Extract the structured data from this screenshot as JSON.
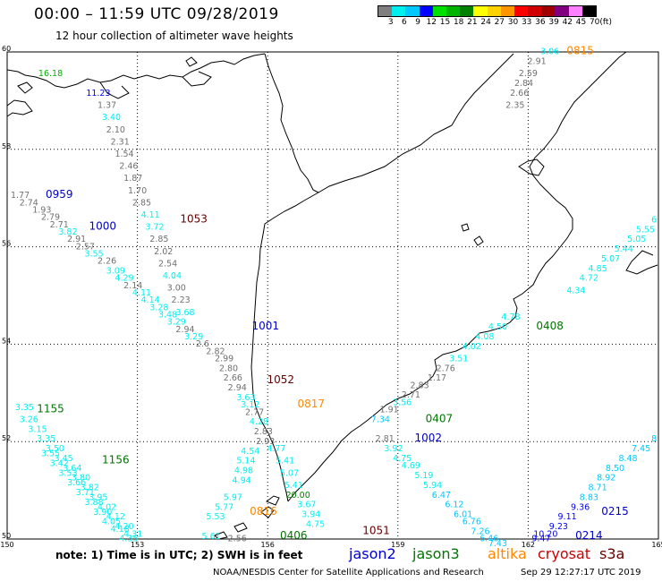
{
  "header": {
    "title": "00:00 – 11:59 UTC 09/28/2019",
    "subtitle": "12 hour collection of altimeter wave heights"
  },
  "scale": {
    "unit": "(ft)",
    "labels": [
      "3",
      "6",
      "9",
      "12",
      "15",
      "18",
      "21",
      "24",
      "27",
      "30",
      "33",
      "36",
      "39",
      "42",
      "45",
      "70"
    ],
    "colors": [
      "#7f7f7f",
      "#00f0f0",
      "#00c8ff",
      "#0000ff",
      "#00e000",
      "#00b400",
      "#008200",
      "#ffff00",
      "#ffd200",
      "#ff9600",
      "#ff0000",
      "#d00000",
      "#a00000",
      "#800080",
      "#ff80ff",
      "#000000"
    ]
  },
  "map": {
    "lat_labels": [
      "60",
      "58",
      "56",
      "54",
      "52",
      "50"
    ],
    "lon_labels": [
      "150",
      "153",
      "156",
      "159",
      "162",
      "165"
    ],
    "latitudes": [
      60,
      58,
      56,
      54,
      52,
      50
    ],
    "longitudes": [
      150,
      153,
      156,
      159,
      162,
      165
    ]
  },
  "chart_data": {
    "type": "scatter",
    "x_range": [
      150,
      165
    ],
    "y_range": [
      50,
      60
    ],
    "satellites": [
      {
        "name": "jason2",
        "color": "#0000cc"
      },
      {
        "name": "jason3",
        "color": "#007700"
      },
      {
        "name": "altika",
        "color": "#ff8800"
      },
      {
        "name": "cryosat",
        "color": "#cc0000"
      },
      {
        "name": "s3a",
        "color": "#660000"
      }
    ],
    "pass_labels": [
      {
        "text": "0815",
        "sat": "altika",
        "lon": 163.2,
        "lat": 59.95
      },
      {
        "text": "0959",
        "sat": "jason2",
        "lon": 151.2,
        "lat": 57.0
      },
      {
        "text": "1000",
        "sat": "jason2",
        "lon": 152.2,
        "lat": 56.35
      },
      {
        "text": "1053",
        "sat": "s3a",
        "lon": 154.3,
        "lat": 56.5
      },
      {
        "text": "1001",
        "sat": "jason2",
        "lon": 155.95,
        "lat": 54.3
      },
      {
        "text": "1052",
        "sat": "s3a",
        "lon": 156.3,
        "lat": 53.2
      },
      {
        "text": "0817",
        "sat": "altika",
        "lon": 157.0,
        "lat": 52.7
      },
      {
        "text": "0408",
        "sat": "jason3",
        "lon": 162.5,
        "lat": 54.3
      },
      {
        "text": "0407",
        "sat": "jason3",
        "lon": 159.95,
        "lat": 52.4
      },
      {
        "text": "1002",
        "sat": "jason2",
        "lon": 159.7,
        "lat": 52.0
      },
      {
        "text": "1155",
        "sat": "jason3",
        "lon": 151.0,
        "lat": 52.6
      },
      {
        "text": "1156",
        "sat": "jason3",
        "lon": 152.5,
        "lat": 51.55
      },
      {
        "text": "0816",
        "sat": "altika",
        "lon": 155.9,
        "lat": 50.5
      },
      {
        "text": "0406",
        "sat": "jason3",
        "lon": 156.6,
        "lat": 50.0
      },
      {
        "text": "1051",
        "sat": "s3a",
        "lon": 158.5,
        "lat": 50.1
      },
      {
        "text": "0215",
        "sat": "jason2",
        "lon": 164.0,
        "lat": 50.5
      },
      {
        "text": "0214",
        "sat": "jason2",
        "lon": 163.4,
        "lat": 50.0
      }
    ],
    "tracks": [
      {
        "name": "altika-0815",
        "values": [
          {
            "lon": 162.5,
            "lat": 59.95,
            "v": "3.06"
          },
          {
            "lon": 162.2,
            "lat": 59.75,
            "v": "2.91"
          },
          {
            "lon": 162.0,
            "lat": 59.5,
            "v": "2.59"
          },
          {
            "lon": 161.9,
            "lat": 59.3,
            "v": "2.84"
          },
          {
            "lon": 161.8,
            "lat": 59.1,
            "v": "2.66"
          },
          {
            "lon": 161.7,
            "lat": 58.85,
            "v": "2.35"
          }
        ]
      },
      {
        "name": "jason3-west",
        "values": [
          {
            "lon": 151.0,
            "lat": 59.5,
            "v": "16.18"
          }
        ]
      },
      {
        "name": "jason2-0959",
        "values": [
          {
            "lon": 152.1,
            "lat": 59.1,
            "v": "11.23"
          },
          {
            "lon": 152.3,
            "lat": 58.85,
            "v": "1.37"
          },
          {
            "lon": 152.4,
            "lat": 58.6,
            "v": "3.40"
          },
          {
            "lon": 152.5,
            "lat": 58.35,
            "v": "2.10"
          },
          {
            "lon": 152.6,
            "lat": 58.1,
            "v": "2.31"
          },
          {
            "lon": 152.7,
            "lat": 57.85,
            "v": "1.54"
          },
          {
            "lon": 152.8,
            "lat": 57.6,
            "v": "2.46"
          },
          {
            "lon": 152.9,
            "lat": 57.35,
            "v": "1.87"
          },
          {
            "lon": 153.0,
            "lat": 57.1,
            "v": "1.70"
          },
          {
            "lon": 153.1,
            "lat": 56.85,
            "v": "2.85"
          },
          {
            "lon": 153.3,
            "lat": 56.6,
            "v": "4.11"
          },
          {
            "lon": 153.4,
            "lat": 56.35,
            "v": "3.72"
          },
          {
            "lon": 153.5,
            "lat": 56.1,
            "v": "2.85"
          },
          {
            "lon": 153.6,
            "lat": 55.85,
            "v": "2.02"
          },
          {
            "lon": 153.7,
            "lat": 55.6,
            "v": "2.54"
          },
          {
            "lon": 153.8,
            "lat": 55.35,
            "v": "4.04"
          },
          {
            "lon": 153.9,
            "lat": 55.1,
            "v": "3.00"
          },
          {
            "lon": 154.0,
            "lat": 54.85,
            "v": "2.23"
          },
          {
            "lon": 154.1,
            "lat": 54.6,
            "v": "3.68"
          }
        ]
      },
      {
        "name": "jason2-1000",
        "values": [
          {
            "lon": 150.3,
            "lat": 57.0,
            "v": "1.77"
          },
          {
            "lon": 150.5,
            "lat": 56.85,
            "v": "2.74"
          },
          {
            "lon": 150.8,
            "lat": 56.7,
            "v": "1.93"
          },
          {
            "lon": 151.0,
            "lat": 56.55,
            "v": "2.79"
          },
          {
            "lon": 151.2,
            "lat": 56.4,
            "v": "2.71"
          },
          {
            "lon": 151.4,
            "lat": 56.25,
            "v": "3.82"
          },
          {
            "lon": 151.6,
            "lat": 56.1,
            "v": "2.91"
          },
          {
            "lon": 151.8,
            "lat": 55.95,
            "v": "2.57"
          },
          {
            "lon": 152.0,
            "lat": 55.8,
            "v": "3.55"
          },
          {
            "lon": 152.3,
            "lat": 55.65,
            "v": "2.26"
          },
          {
            "lon": 152.5,
            "lat": 55.45,
            "v": "3.09"
          },
          {
            "lon": 152.7,
            "lat": 55.3,
            "v": "4.29"
          },
          {
            "lon": 152.9,
            "lat": 55.15,
            "v": "2.14"
          },
          {
            "lon": 153.1,
            "lat": 55.0,
            "v": "4.11"
          },
          {
            "lon": 153.3,
            "lat": 54.85,
            "v": "4.14"
          },
          {
            "lon": 153.5,
            "lat": 54.7,
            "v": "3.28"
          },
          {
            "lon": 153.7,
            "lat": 54.55,
            "v": "3.48"
          },
          {
            "lon": 153.9,
            "lat": 54.4,
            "v": "3.29"
          },
          {
            "lon": 154.1,
            "lat": 54.25,
            "v": "2.94"
          },
          {
            "lon": 154.3,
            "lat": 54.1,
            "v": "3.29"
          },
          {
            "lon": 154.5,
            "lat": 53.95,
            "v": "2.6"
          },
          {
            "lon": 154.8,
            "lat": 53.8,
            "v": "2.82"
          },
          {
            "lon": 155.0,
            "lat": 53.65,
            "v": "2.99"
          },
          {
            "lon": 155.1,
            "lat": 53.45,
            "v": "2.80"
          },
          {
            "lon": 155.2,
            "lat": 53.25,
            "v": "2.66"
          },
          {
            "lon": 155.3,
            "lat": 53.05,
            "v": "2.94"
          },
          {
            "lon": 155.5,
            "lat": 52.85,
            "v": "3.63"
          },
          {
            "lon": 155.6,
            "lat": 52.7,
            "v": "3.12"
          },
          {
            "lon": 155.7,
            "lat": 52.55,
            "v": "2.77"
          },
          {
            "lon": 155.8,
            "lat": 52.35,
            "v": "4.28"
          },
          {
            "lon": 155.9,
            "lat": 52.15,
            "v": "2.83"
          },
          {
            "lon": 155.95,
            "lat": 51.95,
            "v": "2.93"
          }
        ]
      },
      {
        "name": "jason2-1001",
        "values": [
          {
            "lon": 155.6,
            "lat": 51.75,
            "v": "4.54"
          },
          {
            "lon": 155.5,
            "lat": 51.55,
            "v": "5.14"
          },
          {
            "lon": 155.45,
            "lat": 51.35,
            "v": "4.98"
          },
          {
            "lon": 155.4,
            "lat": 51.15,
            "v": "4.94"
          },
          {
            "lon": 155.2,
            "lat": 50.8,
            "v": "5.97"
          },
          {
            "lon": 155.0,
            "lat": 50.6,
            "v": "5.77"
          },
          {
            "lon": 154.8,
            "lat": 50.4,
            "v": "5.53"
          },
          {
            "lon": 154.7,
            "lat": 50.0,
            "v": "5.61"
          },
          {
            "lon": 155.3,
            "lat": 49.95,
            "v": "2.56"
          }
        ]
      },
      {
        "name": "s3a-1052",
        "values": [
          {
            "lon": 156.2,
            "lat": 51.8,
            "v": "4.77"
          },
          {
            "lon": 156.4,
            "lat": 51.55,
            "v": "5.41"
          },
          {
            "lon": 156.5,
            "lat": 51.3,
            "v": "5.07"
          },
          {
            "lon": 156.6,
            "lat": 51.05,
            "v": "5.41"
          },
          {
            "lon": 156.7,
            "lat": 50.85,
            "v": "20.00"
          },
          {
            "lon": 156.9,
            "lat": 50.65,
            "v": "3.67"
          },
          {
            "lon": 157.0,
            "lat": 50.45,
            "v": "3.94"
          },
          {
            "lon": 157.1,
            "lat": 50.25,
            "v": "4.75"
          }
        ]
      },
      {
        "name": "jason3-0408",
        "values": [
          {
            "lon": 164.9,
            "lat": 56.5,
            "v": "6"
          },
          {
            "lon": 164.7,
            "lat": 56.3,
            "v": "5.55"
          },
          {
            "lon": 164.5,
            "lat": 56.1,
            "v": "5.05"
          },
          {
            "lon": 164.2,
            "lat": 55.9,
            "v": "5.44"
          },
          {
            "lon": 163.9,
            "lat": 55.7,
            "v": "5.07"
          },
          {
            "lon": 163.6,
            "lat": 55.5,
            "v": "4.85"
          },
          {
            "lon": 163.4,
            "lat": 55.3,
            "v": "4.72"
          },
          {
            "lon": 163.1,
            "lat": 55.05,
            "v": "4.34"
          },
          {
            "lon": 161.6,
            "lat": 54.5,
            "v": "4.78"
          },
          {
            "lon": 161.3,
            "lat": 54.3,
            "v": "4.50"
          },
          {
            "lon": 161.0,
            "lat": 54.1,
            "v": "4.08"
          },
          {
            "lon": 160.7,
            "lat": 53.9,
            "v": "4.02"
          },
          {
            "lon": 160.4,
            "lat": 53.65,
            "v": "3.51"
          },
          {
            "lon": 160.1,
            "lat": 53.45,
            "v": "2.76"
          },
          {
            "lon": 159.9,
            "lat": 53.25,
            "v": "1.17"
          },
          {
            "lon": 159.5,
            "lat": 53.1,
            "v": "2.83"
          },
          {
            "lon": 159.3,
            "lat": 52.9,
            "v": "2.71"
          },
          {
            "lon": 159.1,
            "lat": 52.75,
            "v": "3.56"
          },
          {
            "lon": 158.8,
            "lat": 52.6,
            "v": "1.91"
          },
          {
            "lon": 158.6,
            "lat": 52.4,
            "v": "7.34"
          }
        ]
      },
      {
        "name": "jason2-1002",
        "values": [
          {
            "lon": 158.7,
            "lat": 52.0,
            "v": "2.81"
          },
          {
            "lon": 158.9,
            "lat": 51.8,
            "v": "3.92"
          },
          {
            "lon": 159.1,
            "lat": 51.6,
            "v": "4.75"
          },
          {
            "lon": 159.3,
            "lat": 51.45,
            "v": "4.69"
          },
          {
            "lon": 159.6,
            "lat": 51.25,
            "v": "5.19"
          },
          {
            "lon": 159.8,
            "lat": 51.05,
            "v": "5.94"
          },
          {
            "lon": 160.0,
            "lat": 50.85,
            "v": "6.47"
          },
          {
            "lon": 160.3,
            "lat": 50.65,
            "v": "6.12"
          },
          {
            "lon": 160.5,
            "lat": 50.45,
            "v": "6.01"
          },
          {
            "lon": 160.7,
            "lat": 50.3,
            "v": "6.76"
          },
          {
            "lon": 160.9,
            "lat": 50.1,
            "v": "7.26"
          },
          {
            "lon": 161.1,
            "lat": 49.95,
            "v": "6.46"
          },
          {
            "lon": 161.3,
            "lat": 49.85,
            "v": "7.43"
          }
        ]
      },
      {
        "name": "jason2-0215",
        "values": [
          {
            "lon": 164.9,
            "lat": 52.0,
            "v": "8"
          },
          {
            "lon": 164.6,
            "lat": 51.8,
            "v": "7.45"
          },
          {
            "lon": 164.3,
            "lat": 51.6,
            "v": "8.48"
          },
          {
            "lon": 164.0,
            "lat": 51.4,
            "v": "8.50"
          },
          {
            "lon": 163.8,
            "lat": 51.2,
            "v": "8.92"
          },
          {
            "lon": 163.6,
            "lat": 51.0,
            "v": "8.71"
          },
          {
            "lon": 163.4,
            "lat": 50.8,
            "v": "8.83"
          },
          {
            "lon": 163.2,
            "lat": 50.6,
            "v": "9.36"
          },
          {
            "lon": 162.9,
            "lat": 50.4,
            "v": "9.11"
          },
          {
            "lon": 162.7,
            "lat": 50.2,
            "v": "9.23"
          },
          {
            "lon": 162.4,
            "lat": 50.05,
            "v": "10.20"
          },
          {
            "lon": 162.3,
            "lat": 49.95,
            "v": "9.47"
          }
        ]
      },
      {
        "name": "jason3-1155",
        "values": [
          {
            "lon": 150.4,
            "lat": 52.65,
            "v": "3.35"
          },
          {
            "lon": 150.5,
            "lat": 52.4,
            "v": "3.26"
          },
          {
            "lon": 150.7,
            "lat": 52.2,
            "v": "3.15"
          },
          {
            "lon": 150.9,
            "lat": 52.0,
            "v": "3.35"
          },
          {
            "lon": 151.1,
            "lat": 51.8,
            "v": "3.50"
          },
          {
            "lon": 151.3,
            "lat": 51.6,
            "v": "3.45"
          },
          {
            "lon": 151.5,
            "lat": 51.4,
            "v": "3.64"
          },
          {
            "lon": 151.7,
            "lat": 51.2,
            "v": "3.80"
          },
          {
            "lon": 151.9,
            "lat": 51.0,
            "v": "3.82"
          },
          {
            "lon": 152.1,
            "lat": 50.8,
            "v": "3.95"
          },
          {
            "lon": 152.3,
            "lat": 50.6,
            "v": "4.02"
          },
          {
            "lon": 152.5,
            "lat": 50.4,
            "v": "4.12"
          },
          {
            "lon": 152.7,
            "lat": 50.2,
            "v": "4.20"
          },
          {
            "lon": 152.9,
            "lat": 50.05,
            "v": "4.31"
          }
        ]
      },
      {
        "name": "jason3-1156",
        "values": [
          {
            "lon": 151.0,
            "lat": 51.7,
            "v": "3.55"
          },
          {
            "lon": 151.2,
            "lat": 51.5,
            "v": "3.42"
          },
          {
            "lon": 151.4,
            "lat": 51.3,
            "v": "3.53"
          },
          {
            "lon": 151.6,
            "lat": 51.1,
            "v": "3.66"
          },
          {
            "lon": 151.8,
            "lat": 50.9,
            "v": "3.71"
          },
          {
            "lon": 152.0,
            "lat": 50.7,
            "v": "3.88"
          },
          {
            "lon": 152.2,
            "lat": 50.5,
            "v": "3.90"
          },
          {
            "lon": 152.4,
            "lat": 50.3,
            "v": "4.05"
          },
          {
            "lon": 152.6,
            "lat": 50.15,
            "v": "4.18"
          },
          {
            "lon": 152.8,
            "lat": 49.95,
            "v": "4.35"
          }
        ]
      }
    ]
  },
  "footer": {
    "note": "note:  1) Time is in UTC;  2) SWH is in feet",
    "legend": [
      {
        "label": "jason2",
        "color": "#0000cc"
      },
      {
        "label": "jason3",
        "color": "#007700"
      },
      {
        "label": "altika",
        "color": "#ff8800"
      },
      {
        "label": "cryosat",
        "color": "#cc0000"
      },
      {
        "label": "s3a",
        "color": "#660000"
      }
    ],
    "credit": "NOAA/NESDIS Center for Satellite Applications and Research",
    "timestamp": "Sep 29 12:27:17 UTC 2019"
  }
}
